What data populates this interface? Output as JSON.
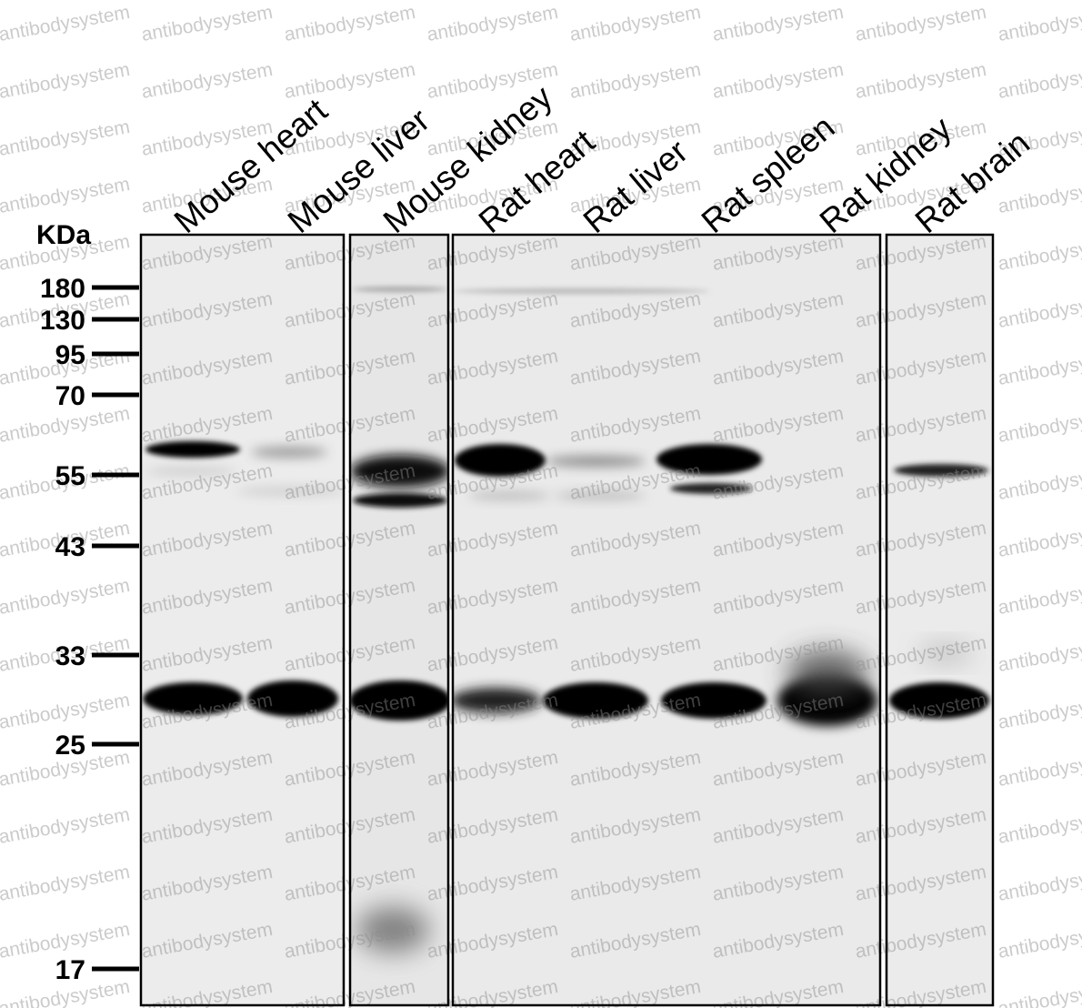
{
  "lanes": [
    "Mouse heart",
    "Mouse liver",
    "Mouse kidney",
    "Rat heart",
    "Rat liver",
    "Rat spleen",
    "Rat kidney",
    "Rat brain"
  ],
  "marker_unit": "KDa",
  "markers": [
    "180",
    "130",
    "95",
    "70",
    "55",
    "43",
    "33",
    "25",
    "17"
  ],
  "watermark": "antibodysystem"
}
